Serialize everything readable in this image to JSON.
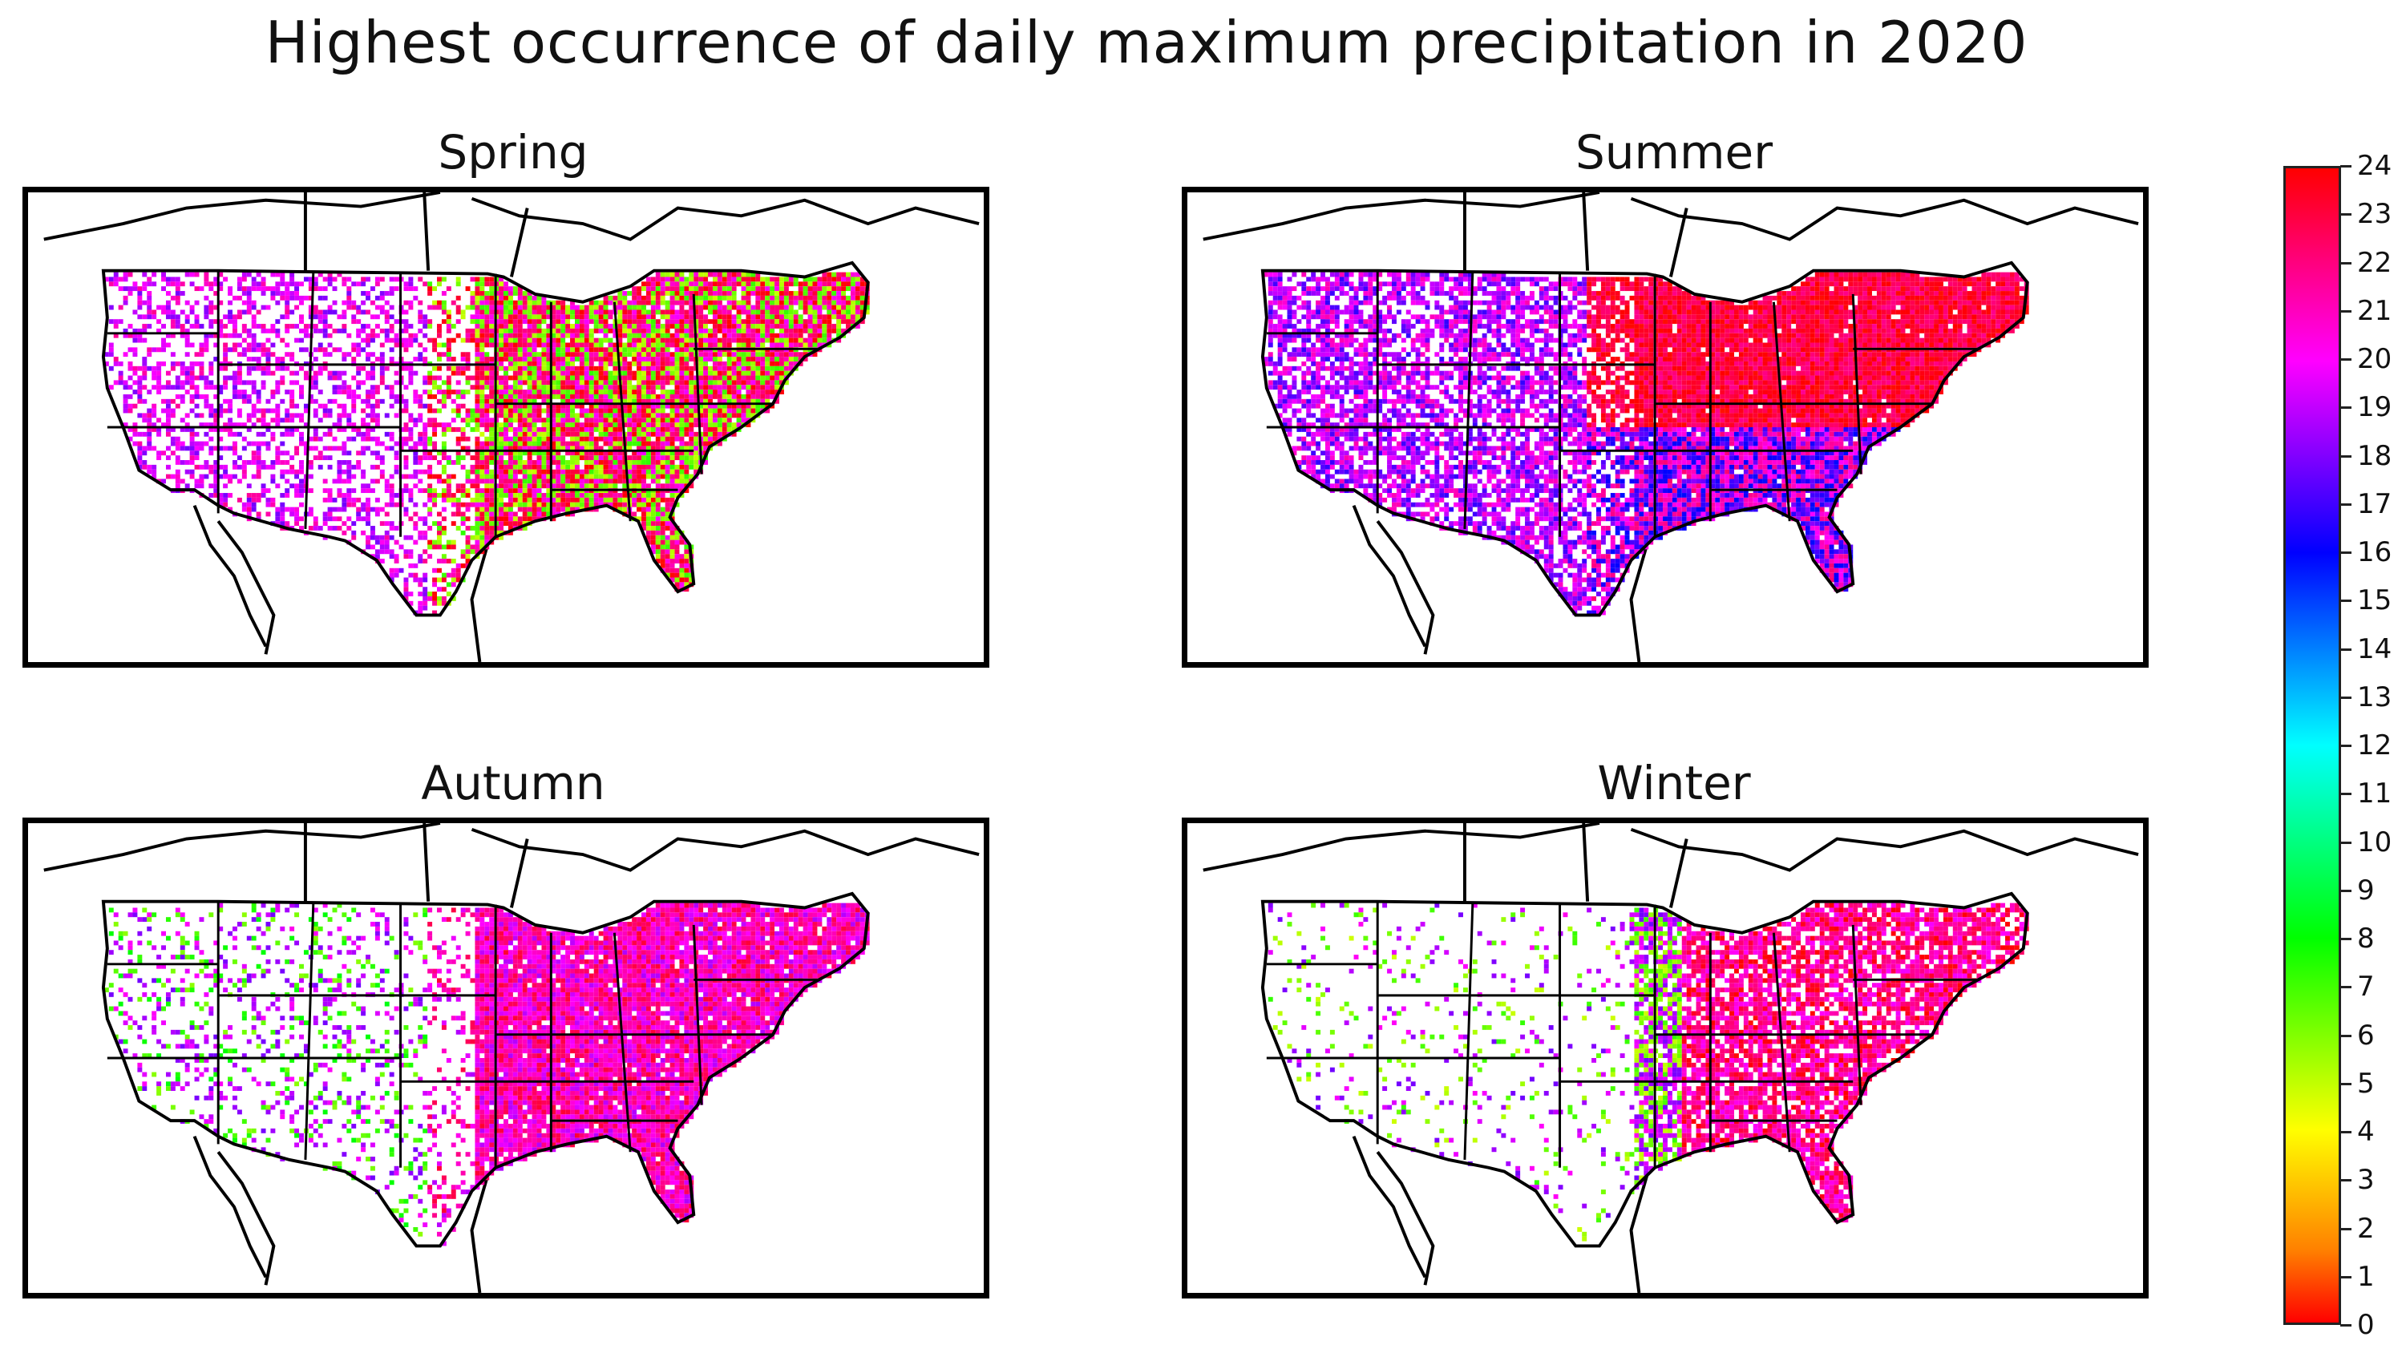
{
  "title": "Highest occurrence of daily maximum precipitation in 2020",
  "panels": [
    {
      "name": "Spring"
    },
    {
      "name": "Summer"
    },
    {
      "name": "Autumn"
    },
    {
      "name": "Winter"
    }
  ],
  "colorbar": {
    "ticks": [
      "0",
      "1",
      "2",
      "3",
      "4",
      "5",
      "6",
      "7",
      "8",
      "9",
      "10",
      "11",
      "12",
      "13",
      "14",
      "15",
      "16",
      "17",
      "18",
      "19",
      "20",
      "21",
      "22",
      "23",
      "24"
    ],
    "colors": {
      "low": "#ff0000",
      "mid": "#00ffff",
      "high": "#ff0000"
    }
  }
}
